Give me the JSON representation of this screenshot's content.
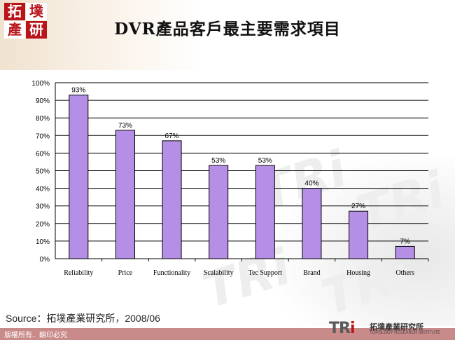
{
  "logo": {
    "chars": [
      "拓",
      "墣",
      "產",
      "研"
    ]
  },
  "title": "DVR產品客戶最主要需求項目",
  "chart_data": {
    "type": "bar",
    "categories": [
      "Reliability",
      "Price",
      "Functionality",
      "Scalability",
      "Tec Support",
      "Brand",
      "Housing",
      "Others"
    ],
    "values": [
      93,
      73,
      67,
      53,
      53,
      40,
      27,
      7
    ],
    "value_labels": [
      "93%",
      "73%",
      "67%",
      "53%",
      "53%",
      "40%",
      "27%",
      "7%"
    ],
    "y_ticks": [
      "0%",
      "10%",
      "20%",
      "30%",
      "40%",
      "50%",
      "60%",
      "70%",
      "80%",
      "90%",
      "100%"
    ],
    "ylim": [
      0,
      100
    ],
    "grid": true,
    "bar_color": "#b58fe6",
    "title": "",
    "xlabel": "",
    "ylabel": ""
  },
  "source": "Source：拓墣產業研究所，2008/06",
  "copyright": "版權所有．翻印必究",
  "brand": {
    "mark_a": "TR",
    "mark_b": "i",
    "name_cn": "拓墣產業研究所",
    "name_en": "TOPOLOGY RESEARCH INSTITUTE"
  },
  "colors": {
    "accent": "#b8141a",
    "footer": "#c98a8a"
  }
}
